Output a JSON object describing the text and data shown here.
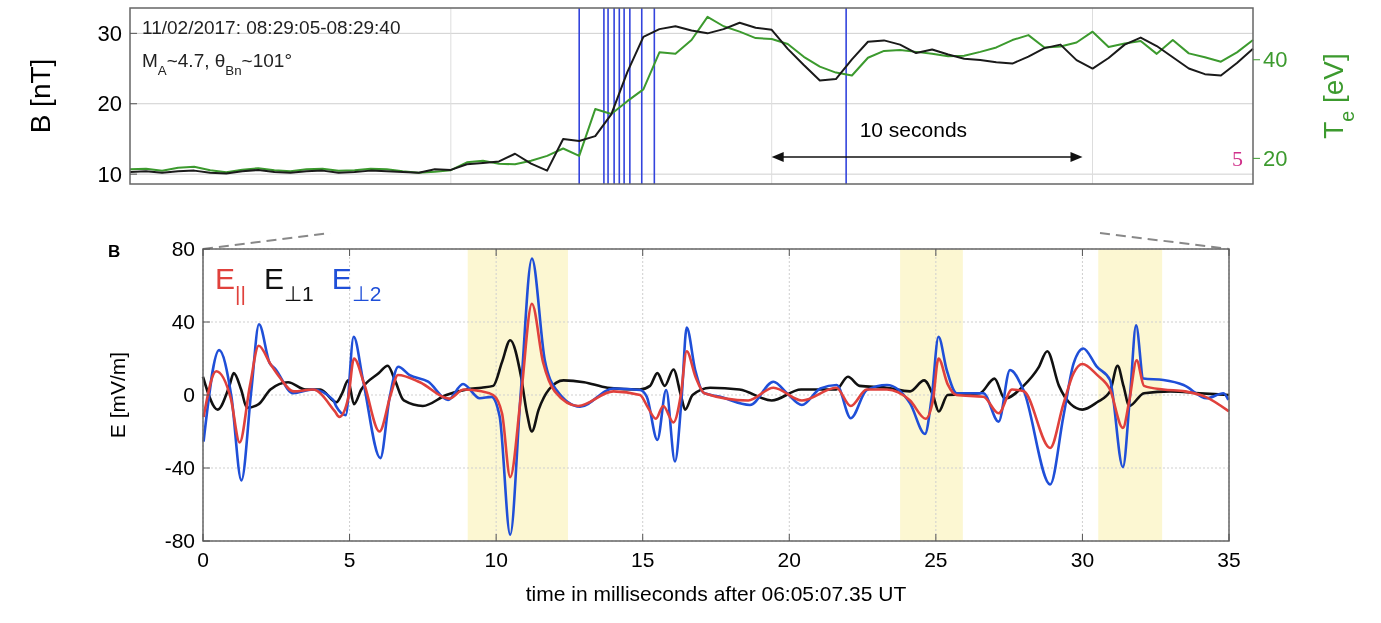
{
  "chart_data": [
    {
      "type": "line",
      "annotations": [
        "11/02/2017:  08:29:05-08:29:40",
        "M$_{A}$~4.7, θ$_{Bn}$~101°",
        "10 seconds",
        "5"
      ],
      "ylabel": "B [nT]",
      "y2label": "T$_{e}$ [eV]",
      "categories": [
        null,
        null,
        null,
        null,
        null,
        null,
        null,
        null,
        null,
        null,
        null,
        null,
        null,
        null,
        null,
        null,
        null,
        null,
        null,
        null,
        null,
        null,
        null,
        null,
        null,
        null,
        null,
        null,
        null,
        null,
        null,
        null,
        null,
        null,
        null,
        null,
        null,
        null,
        null,
        null,
        null,
        null,
        null,
        null,
        null,
        null,
        null,
        null,
        null,
        null,
        null,
        null,
        null,
        null,
        null,
        null,
        null,
        null,
        null,
        null,
        null,
        null,
        null,
        null,
        null,
        null,
        null,
        null,
        null,
        null,
        null
      ],
      "ylim": [
        8.6,
        33.6
      ],
      "yticks": [
        10,
        20,
        30
      ],
      "y2lim": [
        14.8,
        50.5
      ],
      "y2ticks": [
        20,
        40
      ],
      "grid": true,
      "series": [
        {
          "color": "#3c9a2e",
          "axis": "y2",
          "values": [
            17.8,
            17.9,
            17.5,
            18.1,
            18.3,
            17.6,
            17.2,
            17.7,
            18,
            17.6,
            17.4,
            17.8,
            17.9,
            17.5,
            17.6,
            17.9,
            17.8,
            17.4,
            17.1,
            17.3,
            17.6,
            19.2,
            19.5,
            18.9,
            18.8,
            19.5,
            20.5,
            22,
            20.5,
            30,
            29,
            31.6,
            34,
            41.5,
            41.2,
            44,
            48.7,
            46.8,
            45.7,
            44.4,
            44.2,
            43.2,
            40.6,
            38.6,
            37.4,
            36.8,
            40.4,
            41.8,
            42,
            41.6,
            41.2,
            40.7,
            40.8,
            41.6,
            42.5,
            44,
            45,
            42.5,
            42.7,
            43.5,
            45.7,
            42.6,
            43.3,
            43.8,
            41.2,
            44,
            41.3,
            40.5,
            39.6,
            41.5,
            44
          ]
        },
        {
          "color": "#1a1a1a",
          "values": [
            10.3,
            10.4,
            10.2,
            10.4,
            10.5,
            10.2,
            10.1,
            10.4,
            10.6,
            10.3,
            10.2,
            10.4,
            10.5,
            10.2,
            10.3,
            10.5,
            10.4,
            10.3,
            10.2,
            10.7,
            10.6,
            11.4,
            11.6,
            11.8,
            12.9,
            11.5,
            10.5,
            15,
            14.7,
            15.4,
            18.5,
            24.5,
            29.5,
            30.6,
            31,
            30.4,
            30,
            30.6,
            31.5,
            30.8,
            30.5,
            27.8,
            25.5,
            23.3,
            23.5,
            26.3,
            28.8,
            29,
            28.4,
            27.2,
            27.7,
            27,
            26.4,
            26.2,
            25.9,
            25.7,
            26.7,
            27.9,
            28.4,
            26.2,
            25,
            26.5,
            28.4,
            29.4,
            28.2,
            26.6,
            25,
            24.2,
            24,
            25.8,
            27.8
          ]
        }
      ]
    },
    {
      "type": "line",
      "annotations": [
        "B"
      ],
      "xlabel": "time in milliseconds after 06:05:07.35 UT",
      "ylabel": "E [mV/m]",
      "xlim": [
        0,
        35
      ],
      "xticks": [
        0,
        5,
        10,
        15,
        20,
        25,
        30,
        35
      ],
      "ylim": [
        -80,
        80
      ],
      "yticks": [
        -80,
        -40,
        0,
        40,
        80
      ],
      "grid": true,
      "legend": "top left",
      "bands": [
        {
          "axis": "x",
          "from": 9.03,
          "to": 12.45,
          "color": "#fcf7d2"
        },
        {
          "axis": "x",
          "from": 23.78,
          "to": 25.92,
          "color": "#fcf7d2"
        },
        {
          "axis": "x",
          "from": 30.54,
          "to": 32.72,
          "color": "#fcf7d2"
        }
      ],
      "series": [
        {
          "name": "E$_{⊥1}$",
          "color": "#111111",
          "x": [
            0,
            0.5,
            0.9,
            1.05,
            1.3,
            1.5,
            1.9,
            2.3,
            2.9,
            3.5,
            4,
            4.55,
            4.75,
            4.95,
            5.15,
            5.4,
            6,
            6.3,
            6.55,
            6.85,
            7.5,
            8.3,
            9,
            9.5,
            9.9,
            10.2,
            10.48,
            10.85,
            11.05,
            11.22,
            11.45,
            11.8,
            12.3,
            13,
            13.8,
            14.9,
            15.25,
            15.5,
            15.75,
            16.05,
            16.3,
            16.45,
            16.7,
            17.3,
            18.3,
            19.4,
            20.4,
            21.6,
            22,
            22.4,
            23.3,
            24.12,
            24.6,
            24.9,
            25.1,
            25.4,
            26.5,
            27,
            27.35,
            27.99,
            28.5,
            28.8,
            29.2,
            29.6,
            30,
            30.5,
            30.94,
            31.2,
            31.4,
            31.6,
            32.1,
            33,
            34,
            35
          ],
          "values": [
            10,
            -8,
            5,
            12,
            3,
            -7,
            -5,
            3,
            7,
            3,
            3,
            -4,
            1,
            8,
            -5,
            3,
            12,
            16,
            8,
            -3,
            -6,
            0,
            3,
            4,
            5,
            18,
            30,
            10,
            -10,
            -20,
            -8,
            3,
            8,
            7,
            4,
            3,
            5,
            12,
            5,
            14,
            0,
            -8,
            0,
            4,
            3,
            -3,
            3,
            3,
            10,
            5,
            4,
            2,
            8,
            0,
            -9,
            0,
            1,
            9,
            -2,
            5,
            15,
            24,
            5,
            -5,
            -8,
            -4,
            2,
            16,
            5,
            -6,
            1,
            2,
            1,
            0
          ]
        },
        {
          "name": "E$_{⊥2}$",
          "color": "#1f4fd8",
          "x": [
            0.02,
            0.55,
            0.97,
            1.31,
            1.65,
            1.91,
            2.28,
            2.45,
            3.07,
            3.75,
            4.44,
            4.55,
            4.87,
            5.14,
            5.46,
            6.05,
            6.37,
            6.66,
            7.05,
            7.68,
            8.36,
            8.87,
            9.44,
            9.84,
            10.12,
            10.48,
            10.83,
            11.22,
            11.66,
            12.06,
            12.86,
            14,
            14.91,
            15.14,
            15.5,
            15.8,
            16.1,
            16.33,
            16.5,
            16.79,
            17.07,
            17.64,
            18.66,
            19.46,
            19.92,
            20.43,
            21.06,
            21.62,
            22.1,
            22.64,
            23.33,
            24.12,
            24.63,
            24.86,
            25.09,
            25.37,
            25.71,
            26.62,
            27.14,
            27.53,
            27.99,
            28.9,
            29.35,
            29.7,
            30.03,
            30.49,
            30.94,
            31.38,
            31.63,
            31.83,
            32.08,
            32.76,
            33.45,
            34.24,
            34.81,
            34.98
          ],
          "values": [
            -25.5,
            24.6,
            -1,
            -46.8,
            2.7,
            38.8,
            17.3,
            14.6,
            1,
            3,
            -2.7,
            -6.4,
            -11,
            31.9,
            8,
            -34.6,
            -1,
            15.5,
            10.9,
            7.3,
            -2.7,
            6,
            -1.8,
            -1,
            -11.8,
            -76.5,
            -1,
            74.7,
            19,
            2.7,
            -6.4,
            3.6,
            2.7,
            -1,
            -24.6,
            2.7,
            -36.4,
            -1,
            36.9,
            13.7,
            1.3,
            -1,
            -5.5,
            7.3,
            1,
            -5.5,
            3.6,
            5.5,
            -12.7,
            2.7,
            5.5,
            -4.6,
            -21.3,
            -1,
            31.9,
            13.7,
            1,
            1,
            -14.6,
            13.7,
            2.7,
            -49,
            -11.8,
            17.3,
            25.5,
            15.5,
            8.2,
            -39.5,
            1,
            38.2,
            9,
            8.2,
            5.5,
            -1.8,
            1,
            -2.7
          ]
        },
        {
          "name": "E$_{||}$",
          "color": "#e0413c",
          "x": [
            0.02,
            0.45,
            0.95,
            1.25,
            1.6,
            1.9,
            2.3,
            2.6,
            3.1,
            3.75,
            4.5,
            4.65,
            4.95,
            5.15,
            5.5,
            6.02,
            6.4,
            6.65,
            7.4,
            8.4,
            8.9,
            9.5,
            9.9,
            10.2,
            10.48,
            10.85,
            11.22,
            11.6,
            12,
            12.8,
            14,
            14.91,
            15.15,
            15.45,
            15.7,
            16.05,
            16.3,
            16.5,
            16.8,
            17.1,
            18.6,
            19.46,
            20.43,
            21.6,
            22.1,
            22.64,
            23.33,
            24.12,
            24.65,
            24.9,
            25.09,
            25.4,
            25.7,
            26.62,
            27.14,
            27.6,
            28,
            28.9,
            29.35,
            29.7,
            30,
            30.5,
            30.94,
            31.38,
            31.6,
            31.85,
            32.1,
            32.76,
            33.5,
            34.2,
            35
          ],
          "values": [
            -12,
            13,
            -2,
            -26,
            5,
            27,
            17,
            10,
            2,
            3,
            -9,
            -12,
            -2,
            20,
            6,
            -20,
            0,
            11,
            7,
            -2,
            3,
            2,
            0,
            -10,
            -45,
            0,
            50,
            18,
            2,
            -6,
            2,
            0,
            -6,
            -13,
            -6,
            -15,
            0,
            24,
            10,
            1,
            -3,
            4,
            -3,
            4,
            -6,
            3,
            3,
            -3,
            -13,
            -3,
            20,
            6,
            0,
            -1,
            -10,
            3,
            2,
            -29,
            -5,
            12,
            17,
            11,
            3,
            -18,
            -3,
            19,
            5,
            3,
            2,
            -1,
            -9
          ]
        }
      ]
    }
  ]
}
